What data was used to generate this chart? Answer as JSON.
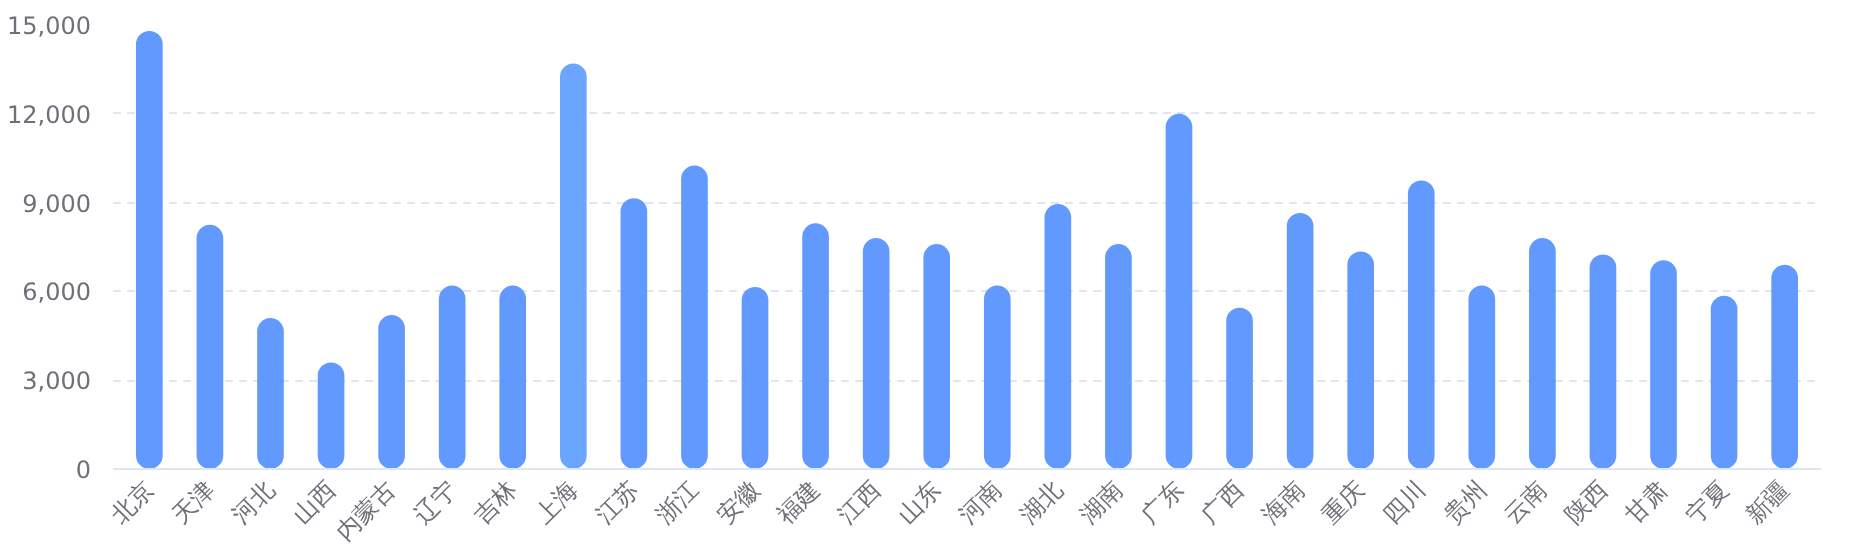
{
  "chart_data": {
    "type": "bar",
    "categories": [
      "北京",
      "天津",
      "河北",
      "山西",
      "内蒙古",
      "辽宁",
      "吉林",
      "上海",
      "江苏",
      "浙江",
      "安徽",
      "福建",
      "江西",
      "山东",
      "河南",
      "湖北",
      "湖南",
      "广东",
      "广西",
      "海南",
      "重庆",
      "四川",
      "贵州",
      "云南",
      "陕西",
      "甘肃",
      "宁夏",
      "新疆"
    ],
    "values": [
      14800,
      8250,
      5100,
      3600,
      5200,
      6200,
      6200,
      13700,
      9150,
      10250,
      6150,
      8300,
      7800,
      7600,
      6200,
      8950,
      7600,
      12000,
      5450,
      8650,
      7350,
      9750,
      6200,
      7800,
      7250,
      7050,
      5850,
      6900
    ],
    "colors": [
      "#6199ff",
      "#6199ff",
      "#6199ff",
      "#6199ff",
      "#6199ff",
      "#6199ff",
      "#6199ff",
      "#6aa6ff",
      "#6199ff",
      "#6199ff",
      "#6199ff",
      "#6199ff",
      "#6199ff",
      "#6199ff",
      "#6199ff",
      "#6199ff",
      "#6199ff",
      "#6199ff",
      "#6199ff",
      "#6199ff",
      "#6199ff",
      "#6199ff",
      "#6199ff",
      "#6199ff",
      "#6199ff",
      "#6199ff",
      "#6199ff",
      "#6199ff"
    ],
    "ylim": [
      0,
      15000
    ],
    "yticks": [
      {
        "value": 0,
        "label": "0"
      },
      {
        "value": 3000,
        "label": "3,000"
      },
      {
        "value": 6000,
        "label": "6,000"
      },
      {
        "value": 9000,
        "label": "9,000"
      },
      {
        "value": 12000,
        "label": "12,000"
      },
      {
        "value": 15000,
        "label": "15,000"
      }
    ],
    "grid": "y"
  }
}
